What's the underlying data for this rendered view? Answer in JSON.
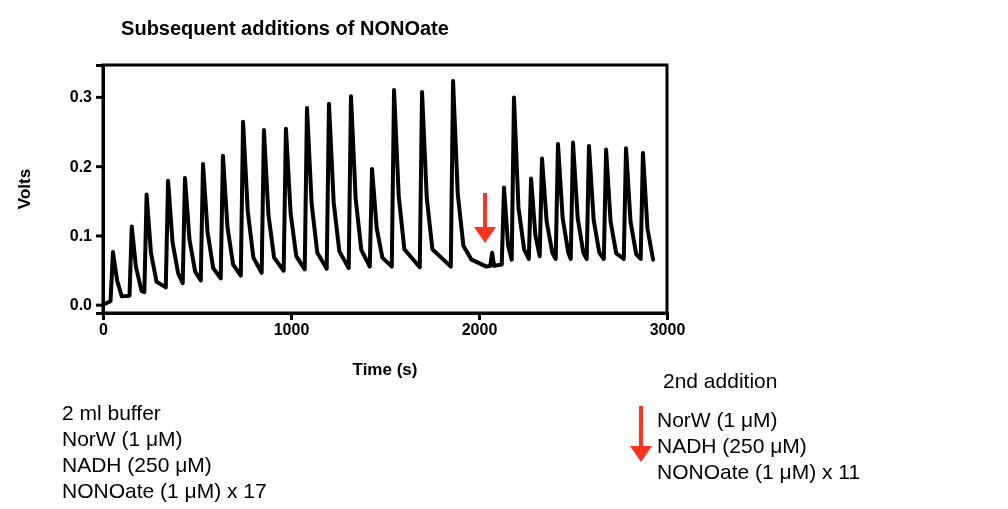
{
  "chart_data": {
    "type": "line",
    "title": "Subsequent additions of NONOate",
    "xlabel": "Time (s)",
    "ylabel": "Volts",
    "xlim": [
      0,
      3000
    ],
    "xticks": [
      0,
      1000,
      2000,
      3000
    ],
    "ylim": [
      -0.012,
      0.346
    ],
    "yticks": [
      {
        "value": 0,
        "label": "0.0"
      },
      {
        "value": 0.1,
        "label": "0.1"
      },
      {
        "value": 0.2,
        "label": "0.2"
      },
      {
        "value": 0.3,
        "label": "0.3"
      }
    ],
    "marker": "none",
    "line_style": "solid",
    "annotations": [
      "2 ml buffer",
      "NorW (1 μM)",
      "NADH (250 μM)",
      "NONOate (1 μM) x 17",
      "2nd addition",
      "NorW (1 μM)",
      "NADH (250 μM)",
      "NONOate (1 μM) x 11"
    ],
    "series": [
      {
        "color": "#000000",
        "x": [
          0,
          40,
          53,
          75,
          100,
          141,
          153,
          175,
          205,
          220,
          232,
          255,
          285,
          334,
          346,
          370,
          400,
          424,
          436,
          460,
          490,
          520,
          532,
          556,
          586,
          626,
          638,
          662,
          692,
          733,
          745,
          770,
          800,
          844,
          856,
          880,
          910,
          961,
          973,
          998,
          1028,
          1073,
          1085,
          1110,
          1140,
          1190,
          1202,
          1227,
          1257,
          1307,
          1319,
          1344,
          1374,
          1419,
          1431,
          1456,
          1486,
          1536,
          1548,
          1573,
          1603,
          1685,
          1697,
          1722,
          1752,
          1850,
          1862,
          1887,
          1917,
          1960,
          2040,
          2060,
          2070,
          2080,
          2121,
          2133,
          2155,
          2174,
          2186,
          2210,
          2240,
          2265,
          2277,
          2300,
          2323,
          2335,
          2360,
          2390,
          2408,
          2420,
          2445,
          2475,
          2488,
          2500,
          2525,
          2555,
          2573,
          2585,
          2610,
          2640,
          2664,
          2676,
          2700,
          2730,
          2770,
          2782,
          2806,
          2836,
          2860,
          2872,
          2896,
          2926
        ],
        "values": [
          0,
          0.005,
          0.076,
          0.035,
          0.012,
          0.013,
          0.113,
          0.055,
          0.02,
          0.018,
          0.159,
          0.075,
          0.033,
          0.025,
          0.179,
          0.09,
          0.045,
          0.031,
          0.183,
          0.094,
          0.048,
          0.035,
          0.203,
          0.105,
          0.053,
          0.038,
          0.215,
          0.112,
          0.058,
          0.042,
          0.264,
          0.135,
          0.068,
          0.046,
          0.252,
          0.13,
          0.068,
          0.049,
          0.254,
          0.132,
          0.07,
          0.051,
          0.284,
          0.145,
          0.075,
          0.052,
          0.29,
          0.148,
          0.077,
          0.053,
          0.301,
          0.153,
          0.079,
          0.055,
          0.196,
          0.11,
          0.068,
          0.055,
          0.31,
          0.157,
          0.08,
          0.054,
          0.307,
          0.155,
          0.08,
          0.055,
          0.323,
          0.16,
          0.085,
          0.065,
          0.055,
          0.056,
          0.075,
          0.056,
          0.058,
          0.169,
          0.085,
          0.065,
          0.299,
          0.14,
          0.08,
          0.066,
          0.182,
          0.1,
          0.07,
          0.211,
          0.12,
          0.075,
          0.066,
          0.232,
          0.125,
          0.075,
          0.066,
          0.234,
          0.125,
          0.075,
          0.066,
          0.229,
          0.122,
          0.075,
          0.066,
          0.224,
          0.12,
          0.074,
          0.066,
          0.226,
          0.12,
          0.073,
          0.066,
          0.219,
          0.11,
          0.065
        ]
      }
    ]
  }
}
